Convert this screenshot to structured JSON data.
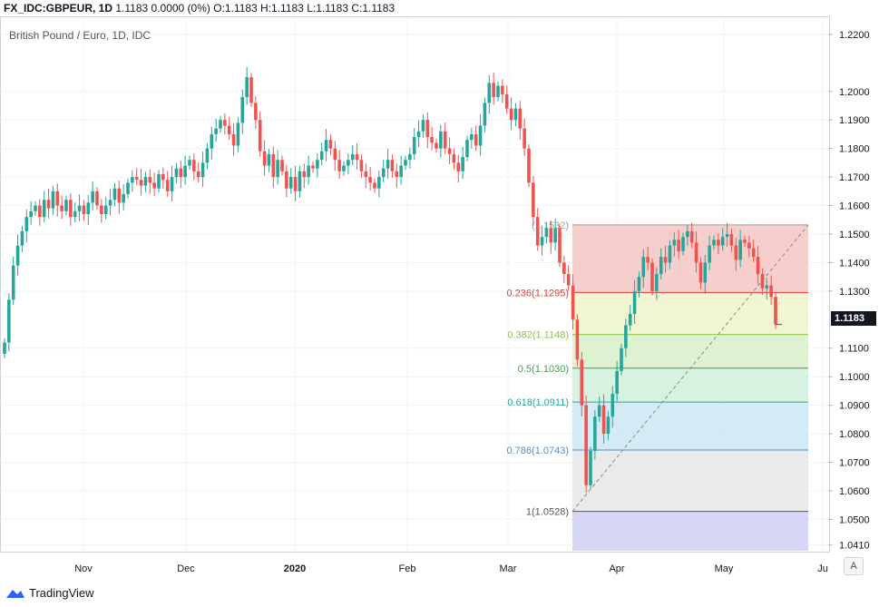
{
  "header": {
    "symbol": "FX_IDC:GBPEUR, 1D",
    "ohlc": "1.1183 0.0000 (0%) O:1.1183 H:1.1183 L:1.1183 C:1.1183"
  },
  "chart_data": {
    "type": "candlestick",
    "title": "British Pound / Euro, 1D, IDC",
    "ylim": [
      1.039,
      1.226
    ],
    "y_ticks": [
      "1.2200",
      "1.2000",
      "1.1900",
      "1.1800",
      "1.1700",
      "1.1600",
      "1.1500",
      "1.1400",
      "1.1300",
      "1.1100",
      "1.1000",
      "1.0900",
      "1.0800",
      "1.0700",
      "1.0600",
      "1.0500",
      "1.0410"
    ],
    "x_ticks": [
      "Nov",
      "Dec",
      "2020",
      "Feb",
      "Mar",
      "Apr",
      "May",
      "Ju"
    ],
    "last_price": "1.1183",
    "grid": true,
    "colors": {
      "up": "#26a69a",
      "down": "#ef5350"
    },
    "fib_levels": [
      {
        "ratio": "0",
        "label": "(1.1532)",
        "price": 1.1532,
        "line": "#9e9e9e",
        "fill": "#f4c7c3"
      },
      {
        "ratio": "0.236",
        "label": "0.236(1.1295)",
        "price": 1.1295,
        "line": "#e53935",
        "fill": "#eef3c9"
      },
      {
        "ratio": "0.382",
        "label": "0.382(1.1148)",
        "price": 1.1148,
        "line": "#8bc34a",
        "fill": "#d8f0c9"
      },
      {
        "ratio": "0.5",
        "label": "0.5(1.1030)",
        "price": 1.103,
        "line": "#43a047",
        "fill": "#d0f0dc"
      },
      {
        "ratio": "0.618",
        "label": "0.618(1.0911)",
        "price": 1.0911,
        "line": "#26a69a",
        "fill": "#cbe8f2"
      },
      {
        "ratio": "0.786",
        "label": "0.786(1.0743)",
        "price": 1.0743,
        "line": "#4a90c8",
        "fill": "#e6e6e6"
      },
      {
        "ratio": "1",
        "label": "1(1.0528)",
        "price": 1.0528,
        "line": "#555555",
        "fill": "#cfcff5"
      }
    ],
    "fib_trend": {
      "from": [
        1.0528
      ],
      "to": [
        1.1532
      ]
    },
    "candles_close": [
      1.112,
      1.127,
      1.139,
      1.146,
      1.151,
      1.156,
      1.158,
      1.16,
      1.156,
      1.162,
      1.159,
      1.165,
      1.16,
      1.158,
      1.162,
      1.156,
      1.158,
      1.16,
      1.157,
      1.161,
      1.165,
      1.16,
      1.157,
      1.16,
      1.162,
      1.166,
      1.161,
      1.164,
      1.168,
      1.17,
      1.169,
      1.167,
      1.17,
      1.168,
      1.166,
      1.171,
      1.169,
      1.165,
      1.17,
      1.173,
      1.17,
      1.174,
      1.176,
      1.172,
      1.17,
      1.175,
      1.18,
      1.185,
      1.187,
      1.19,
      1.188,
      1.185,
      1.181,
      1.189,
      1.198,
      1.205,
      1.196,
      1.19,
      1.179,
      1.174,
      1.178,
      1.17,
      1.176,
      1.172,
      1.166,
      1.17,
      1.165,
      1.172,
      1.17,
      1.174,
      1.173,
      1.176,
      1.179,
      1.183,
      1.18,
      1.176,
      1.172,
      1.174,
      1.176,
      1.178,
      1.176,
      1.172,
      1.17,
      1.168,
      1.166,
      1.17,
      1.173,
      1.176,
      1.172,
      1.17,
      1.174,
      1.176,
      1.178,
      1.184,
      1.186,
      1.19,
      1.184,
      1.182,
      1.18,
      1.186,
      1.18,
      1.178,
      1.175,
      1.172,
      1.177,
      1.183,
      1.185,
      1.181,
      1.188,
      1.196,
      1.203,
      1.198,
      1.202,
      1.199,
      1.194,
      1.19,
      1.194,
      1.187,
      1.18,
      1.168,
      1.156,
      1.146,
      1.149,
      1.152,
      1.147,
      1.152,
      1.14,
      1.136,
      1.132,
      1.12,
      1.106,
      1.09,
      1.062,
      1.074,
      1.086,
      1.09,
      1.08,
      1.086,
      1.094,
      1.102,
      1.11,
      1.118,
      1.122,
      1.13,
      1.135,
      1.142,
      1.14,
      1.13,
      1.136,
      1.142,
      1.14,
      1.146,
      1.148,
      1.144,
      1.149,
      1.151,
      1.147,
      1.14,
      1.133,
      1.14,
      1.146,
      1.148,
      1.146,
      1.149,
      1.15,
      1.146,
      1.141,
      1.148,
      1.147,
      1.145,
      1.142,
      1.136,
      1.131,
      1.132,
      1.128,
      1.1183
    ]
  },
  "footer": {
    "brand": "TradingView",
    "axis_button": "A"
  }
}
